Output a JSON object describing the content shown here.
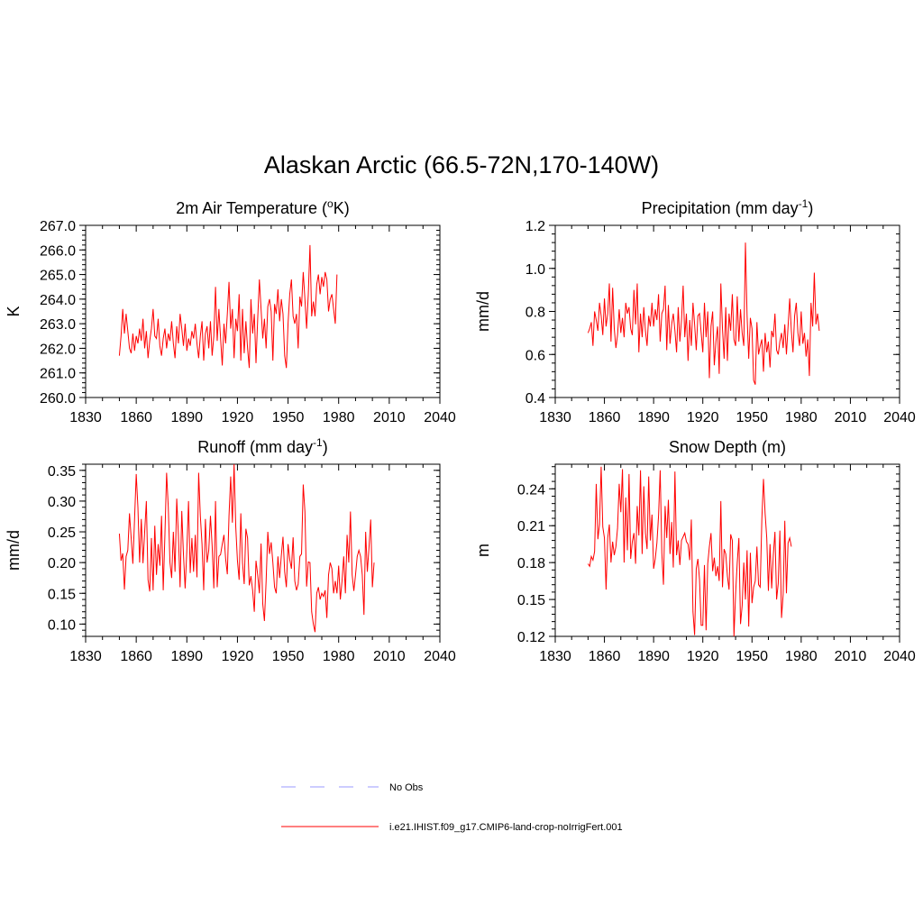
{
  "title": "Alaskan Arctic (66.5-72N,170-140W)",
  "legend": [
    {
      "label": "No Obs",
      "color": "#9999ff",
      "dash": true
    },
    {
      "label": "i.e21.IHIST.f09_g17.CMIP6-land-crop-noIrrigFert.001",
      "color": "#ff0000",
      "dash": false
    }
  ],
  "chart_data": [
    {
      "type": "line",
      "title": "2m Air Temperature (°K)",
      "title_main": "2m Air Temperature (",
      "title_sup": "o",
      "title_tail": "K)",
      "ylabel": "K",
      "xlim": [
        1830,
        2040
      ],
      "xticks": [
        1830,
        1860,
        1890,
        1920,
        1950,
        1980,
        2010,
        2040
      ],
      "ylim": [
        260,
        267
      ],
      "yticks": [
        260.0,
        261.0,
        262.0,
        263.0,
        264.0,
        265.0,
        266.0,
        267.0
      ],
      "ydecimals": 1,
      "x_start": 1850,
      "series": [
        {
          "color": "#ff0000",
          "values": [
            261.7,
            262.5,
            263.6,
            262.6,
            263.4,
            262.7,
            262.0,
            261.8,
            262.6,
            261.9,
            262.5,
            262.2,
            262.8,
            262.3,
            263.2,
            262.0,
            262.7,
            261.6,
            262.3,
            262.8,
            263.6,
            262.5,
            262.4,
            263.2,
            262.1,
            261.7,
            262.4,
            262.8,
            262.0,
            262.6,
            262.3,
            263.1,
            262.2,
            261.6,
            262.9,
            262.2,
            263.4,
            262.8,
            262.1,
            263.0,
            261.9,
            262.4,
            262.1,
            262.7,
            262.4,
            263.0,
            262.2,
            261.6,
            262.5,
            263.1,
            261.5,
            262.6,
            262.9,
            262.0,
            263.1,
            261.7,
            262.5,
            264.5,
            262.3,
            263.6,
            262.4,
            261.3,
            263.0,
            262.2,
            263.4,
            264.7,
            262.8,
            263.6,
            261.6,
            263.2,
            262.7,
            264.2,
            261.5,
            263.6,
            261.8,
            263.1,
            262.0,
            261.2,
            264.0,
            262.6,
            263.4,
            261.4,
            263.2,
            264.8,
            263.6,
            262.4,
            263.2,
            262.0,
            263.7,
            264.0,
            263.5,
            261.5,
            263.8,
            263.4,
            264.4,
            263.1,
            264.0,
            263.4,
            261.7,
            261.2,
            263.0,
            264.2,
            264.8,
            263.3,
            263.0,
            263.4,
            262.0,
            264.1,
            263.7,
            265.1,
            264.0,
            262.8,
            264.2,
            266.2,
            263.3,
            263.9,
            263.3,
            264.6,
            265.0,
            264.2,
            264.9,
            264.5,
            265.1,
            264.8,
            263.5,
            264.0,
            264.2,
            263.6,
            263.0,
            265.0
          ]
        }
      ]
    },
    {
      "type": "line",
      "title": "Precipitation (mm day-1)",
      "title_main": "Precipitation (mm day",
      "title_sup": "-1",
      "title_tail": ")",
      "ylabel": "mm/d",
      "xlim": [
        1830,
        2040
      ],
      "xticks": [
        1830,
        1860,
        1890,
        1920,
        1950,
        1980,
        2010,
        2040
      ],
      "ylim": [
        0.4,
        1.2
      ],
      "yticks": [
        0.4,
        0.6,
        0.8,
        1.0,
        1.2
      ],
      "ydecimals": 1,
      "x_start": 1850,
      "series": [
        {
          "color": "#ff0000",
          "values": [
            0.7,
            0.72,
            0.75,
            0.64,
            0.8,
            0.76,
            0.71,
            0.84,
            0.78,
            0.69,
            0.86,
            0.73,
            0.79,
            0.93,
            0.66,
            0.91,
            0.72,
            0.63,
            0.69,
            0.81,
            0.7,
            0.77,
            0.68,
            0.84,
            0.79,
            0.82,
            0.72,
            0.69,
            0.9,
            0.74,
            0.93,
            0.61,
            0.79,
            0.68,
            0.82,
            0.71,
            0.64,
            0.78,
            0.73,
            0.84,
            0.73,
            0.81,
            0.76,
            0.88,
            0.66,
            0.79,
            0.81,
            0.92,
            0.62,
            0.83,
            0.65,
            0.74,
            0.79,
            0.71,
            0.61,
            0.82,
            0.66,
            0.76,
            0.92,
            0.68,
            0.79,
            0.57,
            0.76,
            0.64,
            0.84,
            0.74,
            0.62,
            0.78,
            0.79,
            0.7,
            0.61,
            0.84,
            0.68,
            0.8,
            0.49,
            0.73,
            0.8,
            0.55,
            0.66,
            0.73,
            0.51,
            0.93,
            0.72,
            0.58,
            0.82,
            0.57,
            0.79,
            0.71,
            0.88,
            0.67,
            0.64,
            0.87,
            0.66,
            0.81,
            0.7,
            0.64,
            1.12,
            0.78,
            0.58,
            0.77,
            0.72,
            0.48,
            0.46,
            0.75,
            0.6,
            0.64,
            0.67,
            0.52,
            0.7,
            0.61,
            0.66,
            0.54,
            0.71,
            0.68,
            0.79,
            0.62,
            0.6,
            0.66,
            0.7,
            0.63,
            0.74,
            0.6,
            0.73,
            0.86,
            0.71,
            0.61,
            0.78,
            0.84,
            0.7,
            0.64,
            0.8,
            0.65,
            0.7,
            0.59,
            0.67,
            0.5,
            0.84,
            0.73,
            0.98,
            0.74,
            0.79,
            0.71
          ]
        }
      ]
    },
    {
      "type": "line",
      "title": "Runoff (mm day-1)",
      "title_main": "Runoff (mm day",
      "title_sup": "-1",
      "title_tail": ")",
      "ylabel": "mm/d",
      "xlim": [
        1830,
        2040
      ],
      "xticks": [
        1830,
        1860,
        1890,
        1920,
        1950,
        1980,
        2010,
        2040
      ],
      "ylim": [
        0.08,
        0.36
      ],
      "yticks": [
        0.1,
        0.15,
        0.2,
        0.25,
        0.3,
        0.35
      ],
      "ydecimals": 2,
      "x_start": 1850,
      "series": [
        {
          "color": "#ff0000",
          "values": [
            0.247,
            0.203,
            0.215,
            0.156,
            0.21,
            0.22,
            0.28,
            0.24,
            0.198,
            0.27,
            0.344,
            0.29,
            0.2,
            0.271,
            0.199,
            0.25,
            0.3,
            0.172,
            0.153,
            0.24,
            0.155,
            0.26,
            0.18,
            0.23,
            0.195,
            0.276,
            0.155,
            0.245,
            0.346,
            0.29,
            0.2,
            0.175,
            0.25,
            0.185,
            0.304,
            0.245,
            0.16,
            0.284,
            0.213,
            0.158,
            0.22,
            0.3,
            0.183,
            0.24,
            0.185,
            0.245,
            0.176,
            0.346,
            0.276,
            0.23,
            0.155,
            0.271,
            0.2,
            0.22,
            0.276,
            0.227,
            0.158,
            0.3,
            0.16,
            0.21,
            0.213,
            0.23,
            0.245,
            0.206,
            0.181,
            0.276,
            0.34,
            0.265,
            0.36,
            0.258,
            0.203,
            0.172,
            0.28,
            0.2,
            0.165,
            0.255,
            0.24,
            0.163,
            0.178,
            0.155,
            0.12,
            0.203,
            0.18,
            0.15,
            0.231,
            0.133,
            0.105,
            0.17,
            0.25,
            0.214,
            0.233,
            0.2,
            0.16,
            0.15,
            0.21,
            0.175,
            0.211,
            0.242,
            0.185,
            0.16,
            0.23,
            0.205,
            0.19,
            0.241,
            0.17,
            0.155,
            0.165,
            0.21,
            0.214,
            0.327,
            0.283,
            0.161,
            0.201,
            0.2,
            0.12,
            0.1,
            0.087,
            0.15,
            0.16,
            0.14,
            0.15,
            0.145,
            0.155,
            0.11,
            0.18,
            0.2,
            0.19,
            0.15,
            0.17,
            0.15,
            0.195,
            0.14,
            0.17,
            0.21,
            0.15,
            0.245,
            0.2,
            0.283,
            0.18,
            0.154,
            0.18,
            0.21,
            0.22,
            0.21,
            0.18,
            0.115,
            0.25,
            0.185,
            0.225,
            0.27,
            0.16,
            0.2
          ]
        }
      ]
    },
    {
      "type": "line",
      "title": "Snow Depth (m)",
      "title_main": "Snow Depth (m)",
      "title_sup": "",
      "title_tail": "",
      "ylabel": "m",
      "xlim": [
        1830,
        2040
      ],
      "xticks": [
        1830,
        1860,
        1890,
        1920,
        1950,
        1980,
        2010,
        2040
      ],
      "ylim": [
        0.12,
        0.26
      ],
      "yticks": [
        0.12,
        0.15,
        0.18,
        0.21,
        0.24
      ],
      "ydecimals": 2,
      "x_start": 1850,
      "series": [
        {
          "color": "#ff0000",
          "values": [
            0.179,
            0.177,
            0.185,
            0.182,
            0.189,
            0.244,
            0.199,
            0.211,
            0.258,
            0.209,
            0.2,
            0.158,
            0.2,
            0.211,
            0.18,
            0.197,
            0.186,
            0.193,
            0.208,
            0.244,
            0.221,
            0.256,
            0.18,
            0.233,
            0.19,
            0.252,
            0.183,
            0.197,
            0.204,
            0.179,
            0.226,
            0.202,
            0.255,
            0.187,
            0.242,
            0.204,
            0.191,
            0.25,
            0.198,
            0.219,
            0.175,
            0.183,
            0.196,
            0.218,
            0.255,
            0.188,
            0.162,
            0.226,
            0.2,
            0.231,
            0.187,
            0.213,
            0.176,
            0.254,
            0.186,
            0.198,
            0.178,
            0.198,
            0.201,
            0.204,
            0.197,
            0.195,
            0.182,
            0.215,
            0.14,
            0.121,
            0.175,
            0.183,
            0.166,
            0.129,
            0.129,
            0.178,
            0.125,
            0.179,
            0.193,
            0.204,
            0.173,
            0.184,
            0.169,
            0.177,
            0.165,
            0.23,
            0.16,
            0.191,
            0.187,
            0.169,
            0.158,
            0.203,
            0.198,
            0.12,
            0.155,
            0.18,
            0.2,
            0.13,
            0.145,
            0.18,
            0.15,
            0.19,
            0.128,
            0.188,
            0.147,
            0.16,
            0.165,
            0.193,
            0.162,
            0.16,
            0.215,
            0.248,
            0.22,
            0.2,
            0.157,
            0.195,
            0.159,
            0.186,
            0.205,
            0.15,
            0.163,
            0.206,
            0.135,
            0.154,
            0.214,
            0.155,
            0.196,
            0.2,
            0.193
          ]
        }
      ]
    }
  ]
}
